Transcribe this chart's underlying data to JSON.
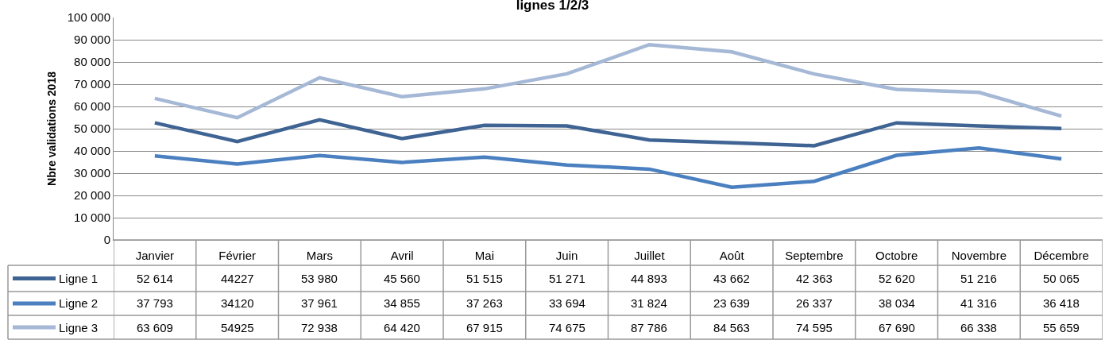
{
  "chart_data": {
    "type": "line",
    "title": "lignes 1/2/3",
    "ylabel": "Nbre validations 2018",
    "categories": [
      "Janvier",
      "Février",
      "Mars",
      "Avril",
      "Mai",
      "Juin",
      "Juillet",
      "Août",
      "Septembre",
      "Octobre",
      "Novembre",
      "Décembre"
    ],
    "series": [
      {
        "name": "Ligne 1",
        "color": "#3f6494",
        "values": [
          52614,
          44227,
          53980,
          45560,
          51515,
          51271,
          44893,
          43662,
          42363,
          52620,
          51216,
          50065
        ],
        "value_labels": [
          "52 614",
          "44227",
          "53 980",
          "45 560",
          "51 515",
          "51 271",
          "44 893",
          "43 662",
          "42 363",
          "52 620",
          "51 216",
          "50 065"
        ]
      },
      {
        "name": "Ligne 2",
        "color": "#4a7fc0",
        "values": [
          37793,
          34120,
          37961,
          34855,
          37263,
          33694,
          31824,
          23639,
          26337,
          38034,
          41316,
          36418
        ],
        "value_labels": [
          "37 793",
          "34120",
          "37 961",
          "34 855",
          "37 263",
          "33 694",
          "31 824",
          "23 639",
          "26 337",
          "38 034",
          "41 316",
          "36 418"
        ]
      },
      {
        "name": "Ligne 3",
        "color": "#a5b8d6",
        "values": [
          63609,
          54925,
          72938,
          64420,
          67915,
          74675,
          87786,
          84563,
          74595,
          67690,
          66338,
          55659
        ],
        "value_labels": [
          "63 609",
          "54925",
          "72 938",
          "64 420",
          "67 915",
          "74 675",
          "87 786",
          "84 563",
          "74 595",
          "67 690",
          "66 338",
          "55 659"
        ]
      }
    ],
    "ylim": [
      0,
      100000
    ],
    "yticks": [
      0,
      {
        "value": 10000,
        "label": "10 000"
      },
      {
        "value": 20000,
        "label": "20 000"
      },
      {
        "value": 30000,
        "label": "30 000"
      },
      {
        "value": 40000,
        "label": "40 000"
      },
      {
        "value": 50000,
        "label": "50 000"
      },
      {
        "value": 60000,
        "label": "60 000"
      },
      {
        "value": 70000,
        "label": "70 000"
      },
      {
        "value": 80000,
        "label": "80 000"
      },
      {
        "value": 90000,
        "label": "90 000"
      },
      {
        "value": 100000,
        "label": "100 000"
      }
    ],
    "grid": "y",
    "legend": "bottom left",
    "marker": "none",
    "line_style": "solid"
  }
}
